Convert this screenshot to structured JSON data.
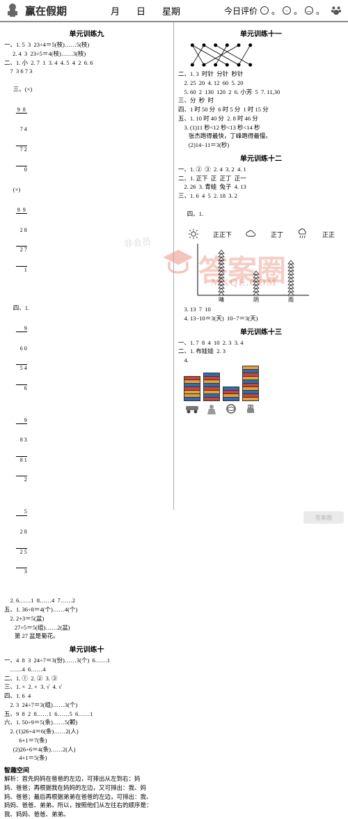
{
  "header": {
    "brand": "赢在假期",
    "month_label": "月",
    "day_label": "日",
    "weekday_label": "星期",
    "rating_label": "今日评价",
    "dots": "。"
  },
  "left": {
    "unit9": {
      "title": "单元训练九",
      "l1": "一、1. 5  3  23÷4＝5(枝)……5(枝)",
      "l2": "2. 4  3  23÷5＝4(枝)……3(枝)",
      "l3": "二、1. 小  2. 7  1  3. 4  4. 5  4  2  6. 6",
      "l4": "    7  3 6 7 3",
      "l5_label": "三、(×)",
      "l5b": "(×)",
      "d1_top": "9  8",
      "d1_div": "7 4",
      "d1_mid": "7 2",
      "d1_bot": "0",
      "d2_top": "9  9",
      "d2_div": "2 8",
      "d2_mid": "2 7",
      "d2_bot": "1",
      "l6_label": "四、1.",
      "ld1_q": "9",
      "ld1_div": "6 0",
      "ld1_r": "5 4",
      "ld1_rem": "6",
      "ld2_q": "9",
      "ld2_div": "8 3",
      "ld2_r": "8 1",
      "ld2_rem": "2",
      "ld3_q": "5",
      "ld3_div": "2 8",
      "ld3_r": "2 5",
      "ld3_rem": "3",
      "l7": "    2. 6……1  8……4  7……2",
      "l8": "五、1. 36÷8＝4(个)……4(个)",
      "l9": "    2. 2+3＝5(盆)",
      "l10": "       27÷5＝5(组)……2(盆)",
      "l11": "       第 27 盆是菊花。"
    },
    "unit10": {
      "title": "单元训练十",
      "l1": "一、4  8  3  24÷7＝3(份)……3(个)  6……1",
      "l2": "    ……4  6……4",
      "l3": "二、1. ①  2. ②  3. ③",
      "l4": "三、1. ×  2. ×  3. √  4. √",
      "l5": "四、1. 6  4",
      "l6": "    2. 3  24÷7＝3(组)……3(个)",
      "l7": "五、9  8  2  8……1  6……5  6……1",
      "l8": "六、1. 50÷9＝5(条)……5(颗)",
      "l9": "    2. (1)26÷4＝6(条)……2(人)",
      "l10": "          6+1＝7(条)",
      "l11": "      (2)26÷6＝4(条)……2(人)",
      "l12": "          4+1＝5(条)"
    },
    "zhiqu": {
      "title": "智趣空间",
      "l1": "解析：首先妈妈在爸爸的左边，可排出从左到右：妈",
      "l2": "妈、爸爸；再根据我在妈妈的左边，又可排出：我、妈",
      "l3": "妈、爸爸；最后再根据弟弟在爸爸的左边，可排出：我、",
      "l4": "妈妈、爸爸、弟弟。所以，按照他们从左往右的顺序是：",
      "l5": "我、妈妈、爸爸、弟弟。"
    }
  },
  "right": {
    "unit11": {
      "title": "单元训练十一",
      "l1": "二、1. 3  时针  分针  秒针",
      "l2": "    2. 25  20  4. 12  60  5. 20",
      "l3": "    5. 60  2  130  120  2  6. 小芳  5  7. 11,30",
      "l4": "三、分  秒  时",
      "l5": "四、1 时 50 分  6 时 5 分  1 时 15 分",
      "l6": "五、1. 10 时 40 分  2. 8 时 46 分",
      "l7": "    3. (1)11 秒<12 秒<13 秒<14 秒",
      "l8": "       张杰跑得最快，丁峰跑得最慢。",
      "l9": "       (2)14−11＝3(秒)"
    },
    "unit12": {
      "title": "单元训练十二",
      "l1": "一、1. ②  ③  2. 4  3. 2  4. 1",
      "l2": "二、1. 正下  正  正丁  正一",
      "l3": "    2. 26  3. 青蛙  兔子  4. 13",
      "l4": "三、1. 6  4  5  2. 18  3. 2",
      "l5_label": "四、1.",
      "w1": "正正下",
      "w2": "正丁",
      "w3": "正正",
      "chart_labels": [
        "晴",
        "阴",
        "雨"
      ],
      "l6": "    3. 13  7  10",
      "l7": "    4. 13−10＝3(天)  10−7＝3(天)"
    },
    "unit13": {
      "title": "单元训练十三",
      "l1": "一、1. 7  8  4  10  2. 3  3. 4",
      "l2": "二、1. 布娃娃  2. 3",
      "l3_label": "    4.",
      "bars": [
        {
          "segs": 7,
          "colors": [
            "#2e6db5",
            "#e5a03a",
            "#e5a03a",
            "#c9453a",
            "#2e6db5",
            "#e5a03a",
            "#c9453a"
          ]
        },
        {
          "segs": 8,
          "colors": [
            "#c9453a",
            "#2e6db5",
            "#e5a03a",
            "#c9453a",
            "#2e6db5",
            "#e5a03a",
            "#c9453a",
            "#2e6db5"
          ]
        },
        {
          "segs": 4,
          "colors": [
            "#2e6db5",
            "#e5a03a",
            "#c9453a",
            "#2e6db5"
          ]
        },
        {
          "segs": 10,
          "colors": [
            "#e5a03a",
            "#c9453a",
            "#2e6db5",
            "#e5a03a",
            "#c9453a",
            "#2e6db5",
            "#e5a03a",
            "#c9453a",
            "#2e6db5",
            "#e5a03a"
          ]
        }
      ]
    }
  },
  "watermark": {
    "big": "答案圈",
    "small": "MXQE.COM",
    "gray": "非会员"
  },
  "chart12": {
    "series_color": "#000000",
    "heights": [
      13,
      7,
      10
    ],
    "max": 14
  }
}
